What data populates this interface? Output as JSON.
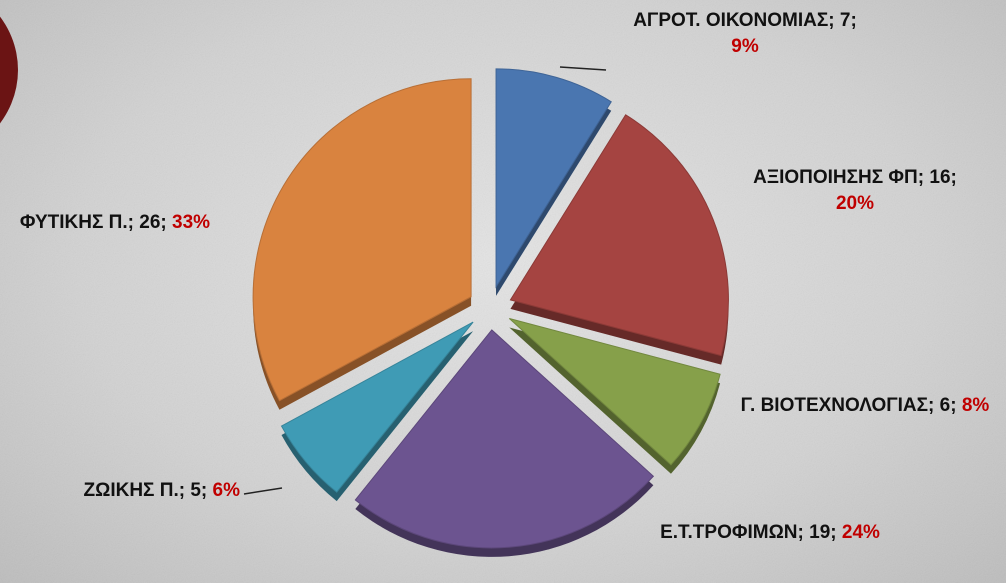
{
  "chart_data": {
    "type": "pie",
    "categories": [
      "ΑΓΡΟΤ. ΟΙΚΟΝΟΜΙΑΣ",
      "ΑΞΙΟΠΟΙΗΣΗΣ ΦΠ",
      "Γ. ΒΙΟΤΕΧΝΟΛΟΓΙΑΣ",
      "Ε.Τ.ΤΡΟΦΙΜΩΝ",
      "ΖΩΙΚΗΣ Π.",
      "ΦΥΤΙΚΗΣ Π."
    ],
    "values": [
      7,
      16,
      6,
      19,
      5,
      26
    ],
    "percents": [
      9,
      20,
      8,
      24,
      6,
      33
    ],
    "percent_labels": [
      "9%",
      "20%",
      "8%",
      "24%",
      "6%",
      "33%"
    ],
    "label_separator": "; ",
    "colors": [
      "#4a76b0",
      "#a54441",
      "#86a04a",
      "#6c5490",
      "#3f9bb5",
      "#d9833f"
    ]
  }
}
